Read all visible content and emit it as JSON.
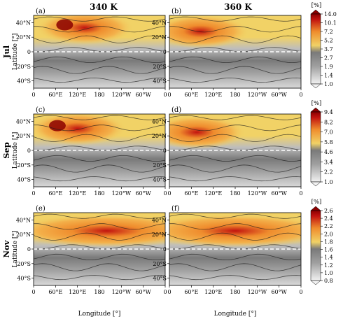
{
  "chart_data": {
    "type": "heatmap",
    "column_titles": [
      "340 K",
      "360 K"
    ],
    "row_titles": [
      "Jul",
      "Sep",
      "Nov"
    ],
    "xlabel": "Longitude [°]",
    "ylabel": "Latitude [°]",
    "x_ticks": [
      "0",
      "60°E",
      "120°E",
      "180",
      "120°W",
      "60°W",
      "0"
    ],
    "y_ticks": [
      "40°N",
      "20°N",
      "0",
      "20°S",
      "40°S"
    ],
    "y_tick_values": [
      40,
      20,
      0,
      -20,
      -40
    ],
    "lat_range": [
      -50,
      50
    ],
    "lon_range": [
      0,
      360
    ],
    "unit": "[%]",
    "colors": {
      "low": "#f2f2f2",
      "mid_gray": "#7a7a7a",
      "yellow": "#f1d266",
      "orange": "#ef8c2d",
      "red": "#c2140f",
      "dark_red": "#8b0000",
      "equator_line": "#ffffff"
    },
    "panels": [
      {
        "label": "(a)",
        "row": 0,
        "col": 0,
        "level": "340 K",
        "month": "Jul",
        "max_lon": 140,
        "max_lat": 33
      },
      {
        "label": "(b)",
        "row": 0,
        "col": 1,
        "level": "360 K",
        "month": "Jul",
        "max_lon": 85,
        "max_lat": 28
      },
      {
        "label": "(c)",
        "row": 1,
        "col": 0,
        "level": "340 K",
        "month": "Sep",
        "max_lon": 120,
        "max_lat": 30
      },
      {
        "label": "(d)",
        "row": 1,
        "col": 1,
        "level": "360 K",
        "month": "Sep",
        "max_lon": 75,
        "max_lat": 25
      },
      {
        "label": "(e)",
        "row": 2,
        "col": 0,
        "level": "340 K",
        "month": "Nov",
        "max_lon": 200,
        "max_lat": 25
      },
      {
        "label": "(f)",
        "row": 2,
        "col": 1,
        "level": "360 K",
        "month": "Nov",
        "max_lon": 180,
        "max_lat": 25
      }
    ],
    "colorbars": [
      {
        "row": 0,
        "ticks": [
          "14.0",
          "10.1",
          "7.2",
          "5.2",
          "3.7",
          "2.7",
          "1.9",
          "1.4",
          "1.0"
        ]
      },
      {
        "row": 1,
        "ticks": [
          "9.4",
          "8.2",
          "7.0",
          "5.8",
          "4.6",
          "3.4",
          "2.2",
          "1.0"
        ]
      },
      {
        "row": 2,
        "ticks": [
          "2.6",
          "2.4",
          "2.2",
          "2.0",
          "1.8",
          "1.6",
          "1.4",
          "1.2",
          "1.0",
          "0.8"
        ]
      }
    ],
    "grid": false,
    "legend": "none"
  }
}
